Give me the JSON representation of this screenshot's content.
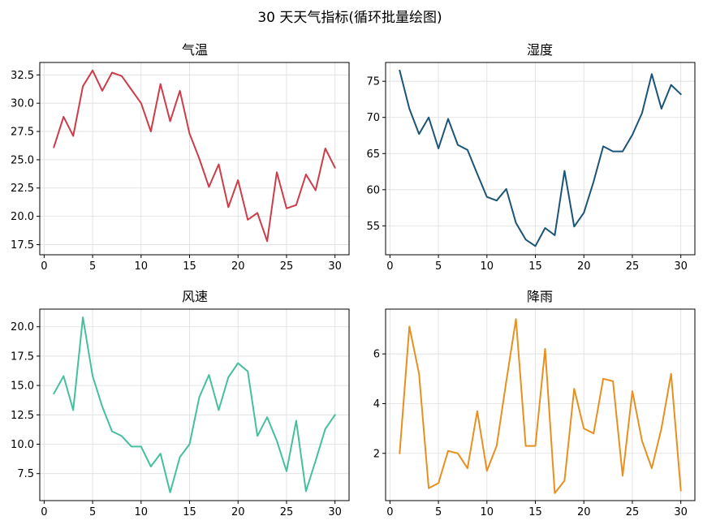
{
  "figure_title": "30 天天气指标(循环批量绘图)",
  "chart_data": [
    {
      "type": "line",
      "title": "气温",
      "color": "#cc3d4a",
      "x": [
        1,
        2,
        3,
        4,
        5,
        6,
        7,
        8,
        9,
        10,
        11,
        12,
        13,
        14,
        15,
        16,
        17,
        18,
        19,
        20,
        21,
        22,
        23,
        24,
        25,
        26,
        27,
        28,
        29,
        30
      ],
      "values": [
        26.1,
        28.8,
        27.1,
        31.5,
        32.9,
        31.1,
        32.7,
        32.4,
        31.2,
        30.0,
        27.5,
        31.7,
        28.4,
        31.1,
        27.3,
        25.1,
        22.6,
        24.6,
        20.8,
        23.2,
        19.7,
        20.3,
        17.8,
        23.9,
        20.7,
        21.0,
        23.7,
        22.3,
        26.0,
        24.3
      ],
      "xticks": [
        0,
        5,
        10,
        15,
        20,
        25,
        30
      ],
      "yticks": [
        17.5,
        20.0,
        22.5,
        25.0,
        27.5,
        30.0,
        32.5
      ],
      "ytick_labels": [
        "17.5",
        "20.0",
        "22.5",
        "25.0",
        "27.5",
        "30.0",
        "32.5"
      ],
      "xlim": [
        -0.45,
        31.45
      ],
      "ylim": [
        16.6,
        33.6
      ],
      "grid": true
    },
    {
      "type": "line",
      "title": "湿度",
      "color": "#1b5478",
      "x": [
        1,
        2,
        3,
        4,
        5,
        6,
        7,
        8,
        9,
        10,
        11,
        12,
        13,
        14,
        15,
        16,
        17,
        18,
        19,
        20,
        21,
        22,
        23,
        24,
        25,
        26,
        27,
        28,
        29,
        30
      ],
      "values": [
        76.5,
        71.2,
        67.7,
        70.0,
        65.7,
        69.8,
        66.2,
        65.5,
        62.2,
        59.0,
        58.5,
        60.1,
        55.4,
        53.1,
        52.2,
        54.7,
        53.7,
        62.6,
        54.9,
        56.8,
        61.1,
        66.0,
        65.3,
        65.3,
        67.6,
        70.6,
        76.0,
        71.2,
        74.5,
        73.2
      ],
      "xticks": [
        0,
        5,
        10,
        15,
        20,
        25,
        30
      ],
      "yticks": [
        55,
        60,
        65,
        70,
        75
      ],
      "ytick_labels": [
        "55",
        "60",
        "65",
        "70",
        "75"
      ],
      "xlim": [
        -0.45,
        31.45
      ],
      "ylim": [
        51.0,
        77.6
      ],
      "grid": true
    },
    {
      "type": "line",
      "title": "风速",
      "color": "#44bf9f",
      "x": [
        1,
        2,
        3,
        4,
        5,
        6,
        7,
        8,
        9,
        10,
        11,
        12,
        13,
        14,
        15,
        16,
        17,
        18,
        19,
        20,
        21,
        22,
        23,
        24,
        25,
        26,
        27,
        28,
        29,
        30
      ],
      "values": [
        14.3,
        15.8,
        12.9,
        20.8,
        15.8,
        13.2,
        11.1,
        10.7,
        9.8,
        9.8,
        8.1,
        9.2,
        5.9,
        8.9,
        10.0,
        14.0,
        15.9,
        12.9,
        15.7,
        16.9,
        16.2,
        10.7,
        12.3,
        10.3,
        7.7,
        12.0,
        6.0,
        8.6,
        11.3,
        12.5
      ],
      "xticks": [
        0,
        5,
        10,
        15,
        20,
        25,
        30
      ],
      "yticks": [
        7.5,
        10.0,
        12.5,
        15.0,
        17.5,
        20.0
      ],
      "ytick_labels": [
        "7.5",
        "10.0",
        "12.5",
        "15.0",
        "17.5",
        "20.0"
      ],
      "xlim": [
        -0.45,
        31.45
      ],
      "ylim": [
        5.2,
        21.5
      ],
      "grid": true
    },
    {
      "type": "line",
      "title": "降雨",
      "color": "#e8901f",
      "x": [
        1,
        2,
        3,
        4,
        5,
        6,
        7,
        8,
        9,
        10,
        11,
        12,
        13,
        14,
        15,
        16,
        17,
        18,
        19,
        20,
        21,
        22,
        23,
        24,
        25,
        26,
        27,
        28,
        29,
        30
      ],
      "values": [
        2.0,
        7.1,
        5.2,
        0.6,
        0.8,
        2.1,
        2.0,
        1.4,
        3.7,
        1.3,
        2.3,
        4.9,
        7.4,
        2.3,
        2.3,
        6.2,
        0.4,
        0.9,
        4.6,
        3.0,
        2.8,
        5.0,
        4.9,
        1.1,
        4.5,
        2.5,
        1.4,
        3.0,
        5.2,
        0.5
      ],
      "xticks": [
        0,
        5,
        10,
        15,
        20,
        25,
        30
      ],
      "yticks": [
        2,
        4,
        6
      ],
      "ytick_labels": [
        "2",
        "4",
        "6"
      ],
      "xlim": [
        -0.45,
        31.45
      ],
      "ylim": [
        0.1,
        7.8
      ],
      "grid": true
    }
  ]
}
